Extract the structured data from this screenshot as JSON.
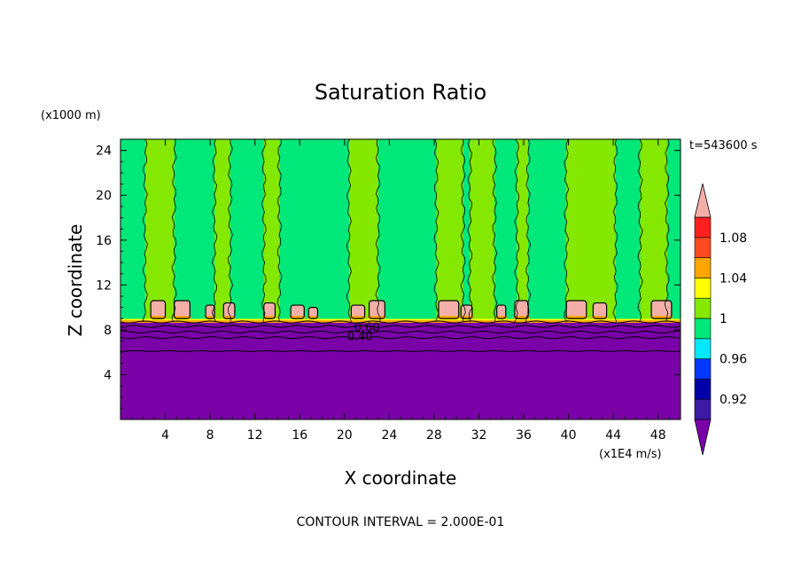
{
  "chart_data": {
    "type": "heatmap",
    "title": "Saturation Ratio",
    "xlabel": "X coordinate",
    "ylabel": "Z coordinate",
    "x_unit": "(x1E4 m/s)",
    "y_unit": "(x1000 m)",
    "time_label": "t=543600 s",
    "footer": "CONTOUR INTERVAL = 2.000E-01",
    "xlim": [
      0,
      50
    ],
    "ylim": [
      0,
      25
    ],
    "x_ticks": [
      4,
      8,
      12,
      16,
      20,
      24,
      28,
      32,
      36,
      40,
      44,
      48
    ],
    "y_ticks": [
      4,
      8,
      12,
      16,
      20,
      24
    ],
    "colorbar": {
      "levels": [
        0.9,
        0.92,
        0.94,
        0.96,
        0.98,
        1.0,
        1.02,
        1.04,
        1.06,
        1.08,
        1.1
      ],
      "tick_labels": [
        "0.92",
        "0.96",
        "1",
        "1.04",
        "1.08"
      ],
      "tick_values": [
        0.92,
        0.96,
        1.0,
        1.04,
        1.08
      ],
      "colors": [
        "#7a00a8",
        "#3c1aa6",
        "#0000a8",
        "#0037ff",
        "#00e8ff",
        "#00e87a",
        "#84e800",
        "#ffff00",
        "#ffa500",
        "#ff4a20",
        "#ff2020",
        "#f4b0a8"
      ],
      "extend": "both"
    },
    "background_value": 0.99,
    "lower_layer": {
      "z_top": 8.7,
      "value": 0.5
    },
    "contour_labels": [
      {
        "text": "0.60",
        "x": 22.0,
        "z": 8.2
      },
      {
        "text": "-0.40",
        "x": 21.2,
        "z": 7.4
      }
    ],
    "columns": [
      {
        "x0": 2.2,
        "x1": 4.8,
        "value": 1.01
      },
      {
        "x0": 8.4,
        "x1": 9.8,
        "value": 1.01
      },
      {
        "x0": 12.8,
        "x1": 14.2,
        "value": 1.01
      },
      {
        "x0": 20.4,
        "x1": 23.0,
        "value": 1.01
      },
      {
        "x0": 28.2,
        "x1": 30.6,
        "value": 1.01
      },
      {
        "x0": 31.2,
        "x1": 33.4,
        "value": 1.01
      },
      {
        "x0": 35.4,
        "x1": 36.4,
        "value": 1.01
      },
      {
        "x0": 39.8,
        "x1": 44.2,
        "value": 1.01
      },
      {
        "x0": 46.4,
        "x1": 48.8,
        "value": 1.01
      }
    ],
    "cells": [
      {
        "x0": 2.7,
        "x1": 4.0,
        "z0": 9.0,
        "z1": 10.6,
        "value": 1.1
      },
      {
        "x0": 4.8,
        "x1": 6.2,
        "z0": 9.0,
        "z1": 10.6,
        "value": 1.1
      },
      {
        "x0": 7.6,
        "x1": 8.4,
        "z0": 9.0,
        "z1": 10.2,
        "value": 1.1
      },
      {
        "x0": 9.2,
        "x1": 10.2,
        "z0": 9.0,
        "z1": 10.4,
        "value": 1.1
      },
      {
        "x0": 12.8,
        "x1": 13.8,
        "z0": 9.0,
        "z1": 10.4,
        "value": 1.1
      },
      {
        "x0": 15.2,
        "x1": 16.4,
        "z0": 9.0,
        "z1": 10.2,
        "value": 1.1
      },
      {
        "x0": 16.8,
        "x1": 17.6,
        "z0": 9.0,
        "z1": 10.0,
        "value": 1.1
      },
      {
        "x0": 20.6,
        "x1": 21.8,
        "z0": 9.0,
        "z1": 10.2,
        "value": 1.1
      },
      {
        "x0": 22.2,
        "x1": 23.6,
        "z0": 9.0,
        "z1": 10.6,
        "value": 1.1
      },
      {
        "x0": 28.4,
        "x1": 30.2,
        "z0": 9.0,
        "z1": 10.6,
        "value": 1.1
      },
      {
        "x0": 30.4,
        "x1": 31.4,
        "z0": 9.0,
        "z1": 10.2,
        "value": 1.1
      },
      {
        "x0": 33.6,
        "x1": 34.4,
        "z0": 9.0,
        "z1": 10.2,
        "value": 1.1
      },
      {
        "x0": 35.2,
        "x1": 36.4,
        "z0": 9.0,
        "z1": 10.6,
        "value": 1.1
      },
      {
        "x0": 39.8,
        "x1": 41.6,
        "z0": 9.0,
        "z1": 10.6,
        "value": 1.1
      },
      {
        "x0": 42.2,
        "x1": 43.4,
        "z0": 9.0,
        "z1": 10.4,
        "value": 1.1
      },
      {
        "x0": 47.4,
        "x1": 49.2,
        "z0": 9.0,
        "z1": 10.6,
        "value": 1.1
      }
    ]
  }
}
